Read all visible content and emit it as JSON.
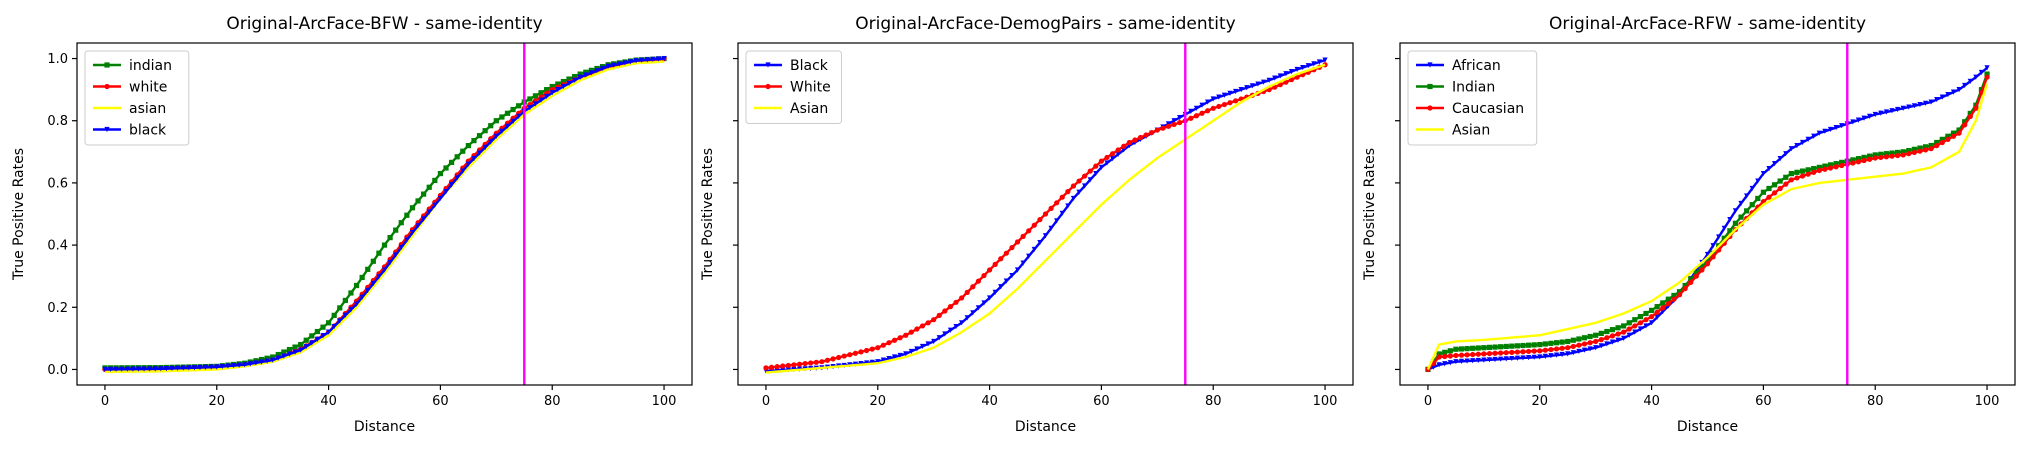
{
  "chart_data": [
    {
      "type": "line",
      "title": "Original-ArcFace-BFW - same-identity",
      "xlabel": "Distance",
      "ylabel": "True Positive Rates",
      "xlim": [
        -5,
        105
      ],
      "ylim": [
        -0.05,
        1.05
      ],
      "xticks": [
        0,
        20,
        40,
        60,
        80,
        100
      ],
      "yticks": [
        0.0,
        0.2,
        0.4,
        0.6,
        0.8,
        1.0
      ],
      "show_ytick_labels": true,
      "grid": false,
      "legend_position": "top-left",
      "vline": {
        "x": 75,
        "color": "#ff00ff"
      },
      "x": [
        0,
        10,
        20,
        25,
        30,
        35,
        40,
        45,
        50,
        55,
        60,
        65,
        70,
        75,
        80,
        85,
        90,
        95,
        100
      ],
      "series": [
        {
          "name": "indian",
          "color": "#008000",
          "marker": "s",
          "values": [
            0.005,
            0.006,
            0.01,
            0.02,
            0.04,
            0.08,
            0.15,
            0.27,
            0.4,
            0.52,
            0.63,
            0.72,
            0.8,
            0.86,
            0.91,
            0.95,
            0.98,
            0.995,
            1.0
          ]
        },
        {
          "name": "white",
          "color": "#ff0000",
          "marker": "o",
          "values": [
            0.0,
            0.002,
            0.008,
            0.015,
            0.03,
            0.065,
            0.12,
            0.22,
            0.33,
            0.45,
            0.56,
            0.67,
            0.76,
            0.84,
            0.9,
            0.94,
            0.97,
            0.99,
            1.0
          ]
        },
        {
          "name": "asian",
          "color": "#ffff00",
          "marker": "none",
          "values": [
            -0.008,
            -0.006,
            0.0,
            0.01,
            0.025,
            0.055,
            0.11,
            0.2,
            0.31,
            0.43,
            0.55,
            0.65,
            0.74,
            0.82,
            0.88,
            0.93,
            0.965,
            0.985,
            0.99
          ]
        },
        {
          "name": "black",
          "color": "#0000ff",
          "marker": "v",
          "values": [
            0.0,
            0.002,
            0.008,
            0.015,
            0.03,
            0.062,
            0.12,
            0.21,
            0.32,
            0.44,
            0.55,
            0.66,
            0.75,
            0.83,
            0.89,
            0.94,
            0.975,
            0.993,
            1.0
          ]
        }
      ]
    },
    {
      "type": "line",
      "title": "Original-ArcFace-DemogPairs - same-identity",
      "xlabel": "Distance",
      "ylabel": "True Positive Rates",
      "xlim": [
        -5,
        105
      ],
      "ylim": [
        -0.05,
        1.05
      ],
      "xticks": [
        0,
        20,
        40,
        60,
        80,
        100
      ],
      "yticks": [
        0.0,
        0.2,
        0.4,
        0.6,
        0.8,
        1.0
      ],
      "show_ytick_labels": false,
      "grid": false,
      "legend_position": "top-left",
      "vline": {
        "x": 75,
        "color": "#ff00ff"
      },
      "x": [
        0,
        10,
        20,
        25,
        30,
        35,
        40,
        45,
        50,
        55,
        60,
        65,
        70,
        75,
        80,
        85,
        90,
        95,
        100
      ],
      "series": [
        {
          "name": "Black",
          "color": "#0000ff",
          "marker": "v",
          "values": [
            -0.005,
            0.005,
            0.025,
            0.05,
            0.09,
            0.15,
            0.23,
            0.32,
            0.43,
            0.55,
            0.65,
            0.72,
            0.77,
            0.82,
            0.87,
            0.9,
            0.93,
            0.965,
            0.995
          ]
        },
        {
          "name": "White",
          "color": "#ff0000",
          "marker": "o",
          "values": [
            0.005,
            0.025,
            0.07,
            0.11,
            0.16,
            0.23,
            0.32,
            0.41,
            0.5,
            0.59,
            0.67,
            0.73,
            0.77,
            0.8,
            0.84,
            0.87,
            0.9,
            0.94,
            0.98
          ]
        },
        {
          "name": "Asian",
          "color": "#ffff00",
          "marker": "none",
          "values": [
            -0.01,
            0.005,
            0.02,
            0.04,
            0.07,
            0.12,
            0.18,
            0.26,
            0.35,
            0.44,
            0.53,
            0.61,
            0.68,
            0.74,
            0.8,
            0.86,
            0.91,
            0.95,
            0.98
          ]
        }
      ]
    },
    {
      "type": "line",
      "title": "Original-ArcFace-RFW - same-identity",
      "xlabel": "Distance",
      "ylabel": "True Positive Rates",
      "xlim": [
        -5,
        105
      ],
      "ylim": [
        -0.05,
        1.05
      ],
      "xticks": [
        0,
        20,
        40,
        60,
        80,
        100
      ],
      "yticks": [
        0.0,
        0.2,
        0.4,
        0.6,
        0.8,
        1.0
      ],
      "show_ytick_labels": false,
      "grid": false,
      "legend_position": "top-left",
      "vline": {
        "x": 75,
        "color": "#ff00ff"
      },
      "x": [
        0,
        2,
        5,
        10,
        20,
        25,
        30,
        35,
        40,
        45,
        50,
        55,
        60,
        65,
        70,
        75,
        80,
        85,
        90,
        95,
        98,
        100
      ],
      "series": [
        {
          "name": "African",
          "color": "#0000ff",
          "marker": "v",
          "values": [
            0.0,
            0.015,
            0.025,
            0.03,
            0.04,
            0.05,
            0.07,
            0.1,
            0.15,
            0.24,
            0.37,
            0.51,
            0.63,
            0.71,
            0.76,
            0.79,
            0.82,
            0.84,
            0.86,
            0.9,
            0.94,
            0.97
          ]
        },
        {
          "name": "Indian",
          "color": "#008000",
          "marker": "s",
          "values": [
            0.0,
            0.05,
            0.065,
            0.07,
            0.08,
            0.09,
            0.11,
            0.14,
            0.19,
            0.25,
            0.35,
            0.47,
            0.57,
            0.63,
            0.65,
            0.67,
            0.69,
            0.7,
            0.72,
            0.77,
            0.85,
            0.95
          ]
        },
        {
          "name": "Caucasian",
          "color": "#ff0000",
          "marker": "o",
          "values": [
            0.0,
            0.04,
            0.045,
            0.05,
            0.06,
            0.07,
            0.09,
            0.12,
            0.17,
            0.24,
            0.34,
            0.45,
            0.54,
            0.61,
            0.64,
            0.66,
            0.68,
            0.69,
            0.71,
            0.76,
            0.84,
            0.94
          ]
        },
        {
          "name": "Asian",
          "color": "#ffff00",
          "marker": "none",
          "values": [
            0.0,
            0.08,
            0.09,
            0.095,
            0.11,
            0.13,
            0.15,
            0.18,
            0.22,
            0.28,
            0.36,
            0.45,
            0.53,
            0.58,
            0.6,
            0.61,
            0.62,
            0.63,
            0.65,
            0.7,
            0.8,
            0.92
          ]
        }
      ]
    }
  ]
}
